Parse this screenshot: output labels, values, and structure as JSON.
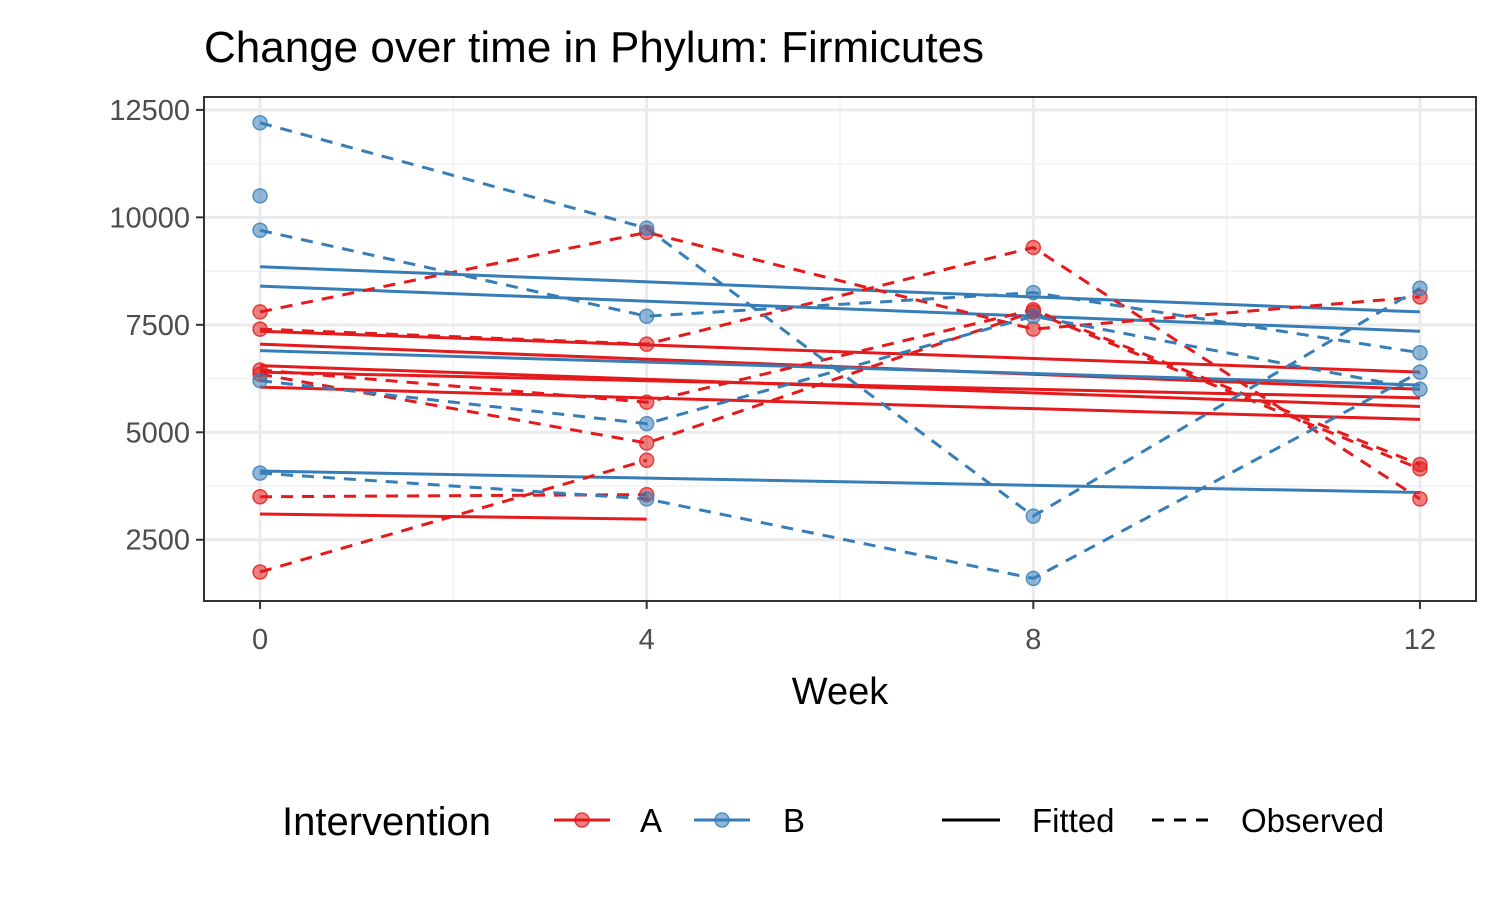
{
  "chart_data": {
    "type": "line",
    "title": "Change over time in Phylum: Firmicutes",
    "xlabel": "Week",
    "ylabel": "",
    "x_ticks": [
      0,
      4,
      8,
      12
    ],
    "y_ticks": [
      2500,
      5000,
      7500,
      10000,
      12500
    ],
    "x_tick_labels": [
      "0",
      "4",
      "8",
      "12"
    ],
    "y_tick_labels": [
      "2500",
      "5000",
      "7500",
      "10000",
      "12500"
    ],
    "xlim": [
      -0.58,
      12.58
    ],
    "ylim": [
      1075,
      12800
    ],
    "grid": true,
    "legend_position": "bottom",
    "colors": {
      "A": "#e41a1c",
      "B": "#377eb8"
    },
    "legend": {
      "color_title": "Intervention",
      "color_items": [
        {
          "key": "A",
          "label": "A"
        },
        {
          "key": "B",
          "label": "B"
        }
      ],
      "linetype_items": [
        {
          "key": "fitted",
          "label": "Fitted"
        },
        {
          "key": "observed",
          "label": "Observed"
        }
      ]
    },
    "observed": [
      {
        "group": "A",
        "x": [
          0,
          4,
          8,
          12
        ],
        "y": [
          7800,
          9650,
          7400,
          8150
        ]
      },
      {
        "group": "A",
        "x": [
          0,
          4,
          8,
          12
        ],
        "y": [
          7400,
          7050,
          9300,
          3450
        ]
      },
      {
        "group": "A",
        "x": [
          0,
          4,
          8,
          12
        ],
        "y": [
          6450,
          5700,
          7850,
          4250
        ]
      },
      {
        "group": "A",
        "x": [
          0,
          4,
          8,
          12
        ],
        "y": [
          6350,
          4750,
          7800,
          4150
        ]
      },
      {
        "group": "A",
        "x": [
          0,
          4
        ],
        "y": [
          3500,
          3550
        ]
      },
      {
        "group": "A",
        "x": [
          0,
          4
        ],
        "y": [
          1750,
          4350
        ]
      },
      {
        "group": "B",
        "x": [
          0,
          4,
          8,
          12
        ],
        "y": [
          12200,
          9750,
          3050,
          8350
        ]
      },
      {
        "group": "B",
        "x": [
          0,
          4,
          8,
          12
        ],
        "y": [
          9700,
          7700,
          8250,
          6850
        ]
      },
      {
        "group": "B",
        "x": [
          0,
          4,
          8,
          12
        ],
        "y": [
          6200,
          5200,
          7700,
          6000
        ]
      },
      {
        "group": "B",
        "x": [
          0,
          4,
          8,
          12
        ],
        "y": [
          4050,
          3450,
          1600,
          6400
        ]
      }
    ],
    "extra_points": [
      {
        "group": "B",
        "x": 0,
        "y": 10500
      }
    ],
    "fitted": [
      {
        "group": "A",
        "x": [
          0,
          12
        ],
        "y": [
          7350,
          6400
        ]
      },
      {
        "group": "A",
        "x": [
          0,
          12
        ],
        "y": [
          7050,
          6000
        ]
      },
      {
        "group": "A",
        "x": [
          0,
          12
        ],
        "y": [
          6550,
          5600
        ]
      },
      {
        "group": "A",
        "x": [
          0,
          12
        ],
        "y": [
          6400,
          5800
        ]
      },
      {
        "group": "A",
        "x": [
          0,
          12
        ],
        "y": [
          6050,
          5300
        ]
      },
      {
        "group": "A",
        "x": [
          0,
          4
        ],
        "y": [
          3100,
          2980
        ]
      },
      {
        "group": "B",
        "x": [
          0,
          12
        ],
        "y": [
          8850,
          7800
        ]
      },
      {
        "group": "B",
        "x": [
          0,
          12
        ],
        "y": [
          8400,
          7350
        ]
      },
      {
        "group": "B",
        "x": [
          0,
          12
        ],
        "y": [
          6900,
          6100
        ]
      },
      {
        "group": "B",
        "x": [
          0,
          12
        ],
        "y": [
          4100,
          3600
        ]
      }
    ]
  }
}
